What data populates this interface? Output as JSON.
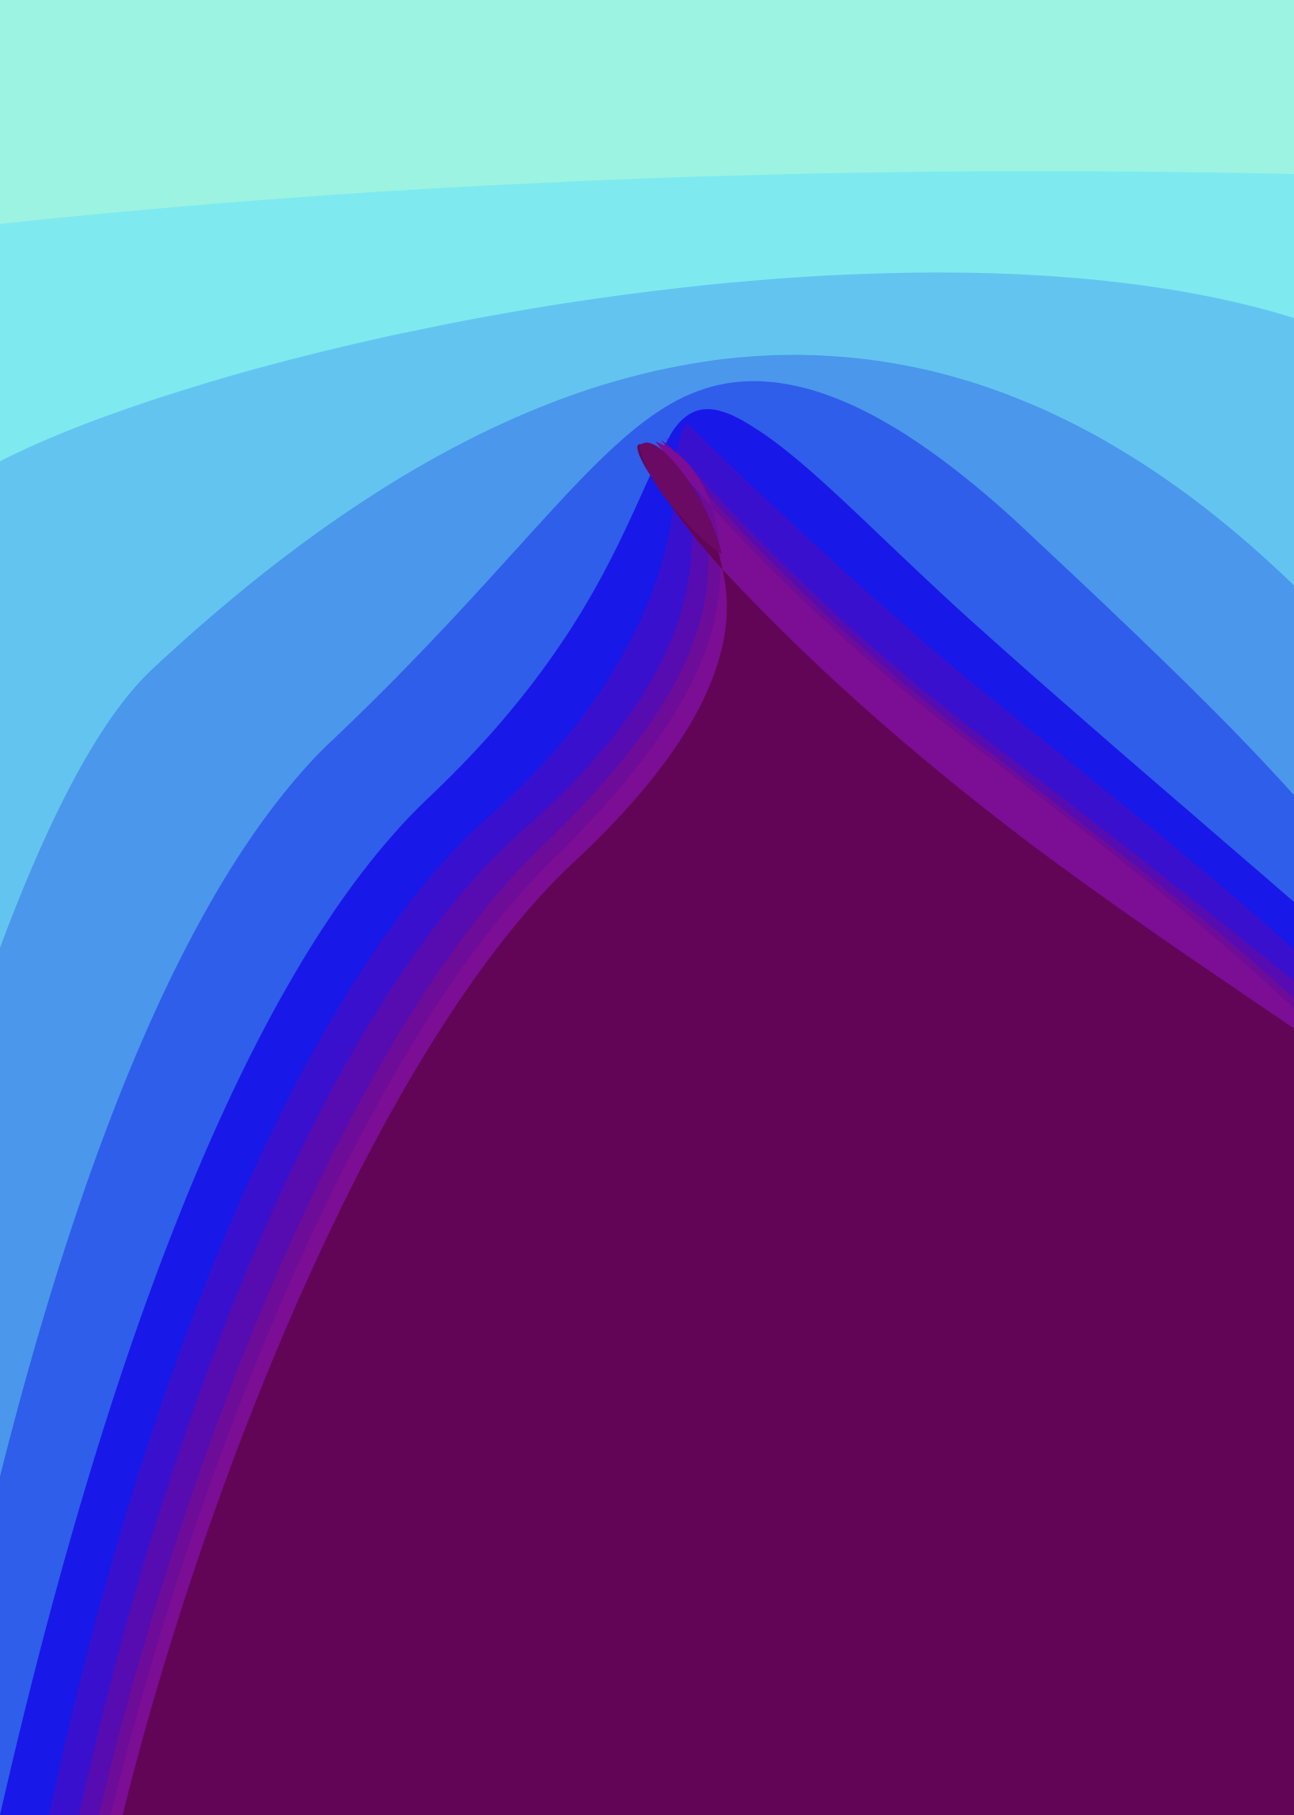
{
  "artwork": {
    "description_visible_text": "",
    "layers": [
      {
        "name": "layer-1",
        "color": "#9CF3E2"
      },
      {
        "name": "layer-2",
        "color": "#7FE9F0"
      },
      {
        "name": "layer-3",
        "color": "#63C5EF"
      },
      {
        "name": "layer-4",
        "color": "#4A97EC"
      },
      {
        "name": "layer-5",
        "color": "#2F5EEA"
      },
      {
        "name": "layer-6",
        "color": "#1818E8"
      },
      {
        "name": "layer-7",
        "color": "#3A10CF"
      },
      {
        "name": "layer-8",
        "color": "#560CB0"
      },
      {
        "name": "layer-9",
        "color": "#6E0C9A"
      },
      {
        "name": "layer-10",
        "color": "#7B0E94"
      },
      {
        "name": "layer-11",
        "color": "#630556"
      }
    ]
  }
}
